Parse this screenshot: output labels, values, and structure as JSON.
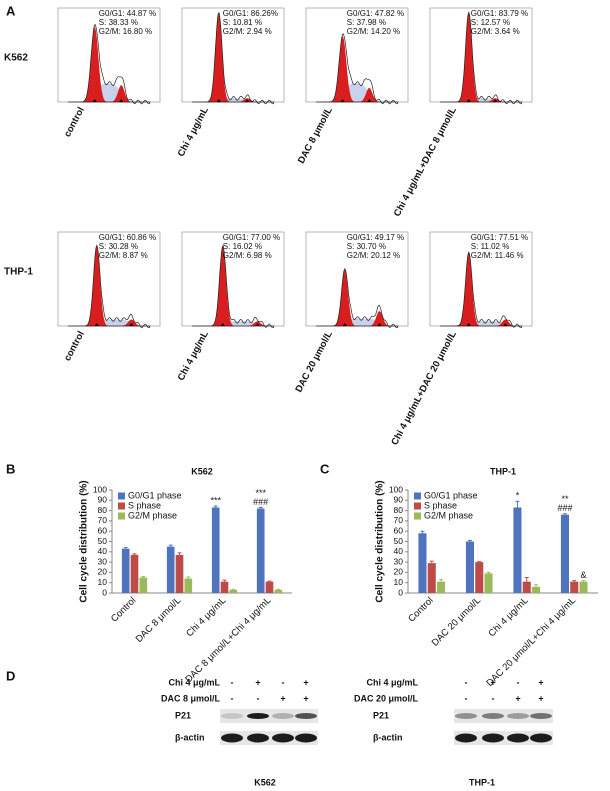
{
  "panel_a": {
    "label": "A",
    "rows": [
      {
        "name": "K562",
        "plots": [
          {
            "condition": "control",
            "stats": [
              "G0/G1: 44.87 %",
              "S: 38.33 %",
              "G2/M: 16.80 %"
            ]
          },
          {
            "condition": "Chi 4 μg/mL",
            "stats": [
              "G0/G1: 86.26%",
              "S: 10.81 %",
              "G2/M: 2.94 %"
            ]
          },
          {
            "condition": "DAC 8 μmol/L",
            "stats": [
              "G0/G1: 47.82 %",
              "S: 37.98 %",
              "G2/M: 14.20 %"
            ]
          },
          {
            "condition": "Chi 4 μg/mL+DAC 8 μmol/L",
            "stats": [
              "G0/G1: 83.79 %",
              "S: 12.57 %",
              "G2/M: 3.64 %"
            ]
          }
        ]
      },
      {
        "name": "THP-1",
        "plots": [
          {
            "condition": "control",
            "stats": [
              "G0/G1: 60.86 %",
              "S: 30.28 %",
              "G2/M: 8.87 %"
            ]
          },
          {
            "condition": "Chi 4 μg/mL",
            "stats": [
              "G0/G1: 77.00 %",
              "S: 16.02 %",
              "G2/M: 6.98 %"
            ]
          },
          {
            "condition": "DAC 20 μmol/L",
            "stats": [
              "G0/G1: 49.17 %",
              "S: 30.70 %",
              "G2/M: 20.12 %"
            ]
          },
          {
            "condition": "Chi 4 μg/mL+DAC 20 μmol/L",
            "stats": [
              "G0/G1: 77.51 %",
              "S: 11.02 %",
              "G2/M: 11.46 %"
            ]
          }
        ]
      }
    ]
  },
  "chart_data": [
    {
      "panel_label": "B",
      "type": "bar",
      "title": "K562",
      "y_label": "Cell cycle distribution (%)",
      "categories": [
        "Control",
        "DAC 8 μmol/L",
        "Chi 4 μg/mL",
        "DAC 8 μmol/L+Chi 4 μg/mL"
      ],
      "series": [
        {
          "name": "G0/G1 phase",
          "color": "#4f74bd",
          "values": [
            43,
            45,
            83,
            82
          ],
          "errors": [
            1,
            1.5,
            1.5,
            1
          ],
          "annotations": [
            null,
            null,
            [
              "***"
            ],
            [
              "***",
              "###"
            ]
          ]
        },
        {
          "name": "S phase",
          "color": "#bd4b48",
          "values": [
            37,
            37,
            11,
            11
          ],
          "errors": [
            1,
            2,
            1.5,
            0.5
          ],
          "annotations": [
            null,
            null,
            null,
            null
          ]
        },
        {
          "name": "G2/M phase",
          "color": "#9aba5a",
          "values": [
            15,
            14,
            3,
            3
          ],
          "errors": [
            1,
            1.5,
            0.5,
            0.5
          ],
          "annotations": [
            null,
            null,
            null,
            null
          ]
        }
      ],
      "ylim": [
        0,
        100
      ],
      "yticks": [
        0,
        10,
        20,
        30,
        40,
        50,
        60,
        70,
        80,
        90,
        100
      ],
      "legend": "top-left"
    },
    {
      "panel_label": "C",
      "type": "bar",
      "title": "THP-1",
      "y_label": "Cell cycle distribution (%)",
      "categories": [
        "Control",
        "DAC 20 μmol/L",
        "Chi 4 μg/mL",
        "DAC 20 μmol/L+Chi 4 μg/mL"
      ],
      "series": [
        {
          "name": "G0/G1 phase",
          "color": "#4f74bd",
          "values": [
            58,
            50,
            83,
            76
          ],
          "errors": [
            2,
            1,
            6,
            1
          ],
          "annotations": [
            null,
            null,
            [
              "*"
            ],
            [
              "**",
              "###"
            ]
          ]
        },
        {
          "name": "S phase",
          "color": "#bd4b48",
          "values": [
            29,
            30,
            11,
            11
          ],
          "errors": [
            2,
            0.5,
            4,
            1
          ],
          "annotations": [
            null,
            null,
            null,
            null
          ]
        },
        {
          "name": "G2/M phase",
          "color": "#9aba5a",
          "values": [
            11,
            19,
            6,
            11
          ],
          "errors": [
            2,
            1,
            2,
            1
          ],
          "annotations": [
            null,
            null,
            null,
            [
              "&"
            ]
          ]
        }
      ],
      "ylim": [
        0,
        100
      ],
      "yticks": [
        0,
        10,
        20,
        30,
        40,
        50,
        60,
        70,
        80,
        90,
        100
      ],
      "legend": "top-left"
    }
  ],
  "panel_d": {
    "label": "D",
    "blots": [
      {
        "rows": [
          {
            "label": "Chi 4 μg/mL",
            "signs": [
              "-",
              "+",
              "-",
              "+"
            ]
          },
          {
            "label": "DAC 8 μmol/L",
            "signs": [
              "-",
              "-",
              "+",
              "+"
            ]
          }
        ],
        "bands": [
          "P21",
          "β-actin"
        ],
        "caption": "K562"
      },
      {
        "rows": [
          {
            "label": "Chi 4 μg/mL",
            "signs": [
              "-",
              "+",
              "-",
              "+"
            ]
          },
          {
            "label": "DAC 20 μmol/L",
            "signs": [
              "-",
              "-",
              "+",
              "+"
            ]
          }
        ],
        "bands": [
          "P21",
          "β-actin"
        ],
        "caption": "THP-1"
      }
    ]
  }
}
